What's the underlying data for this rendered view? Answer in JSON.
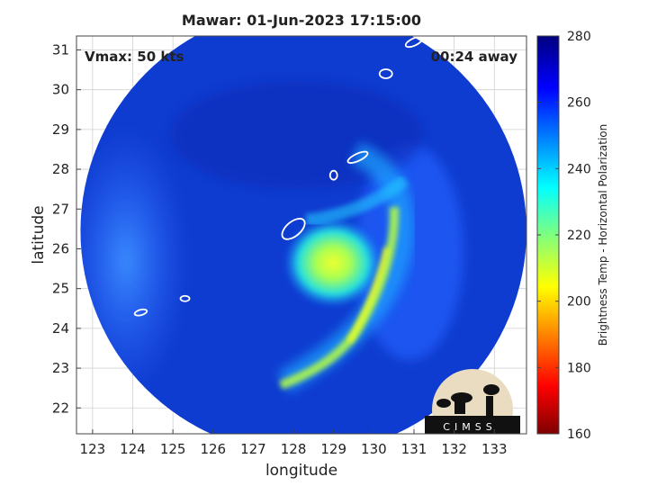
{
  "chart_data": {
    "type": "heatmap",
    "title": "Mawar: 01-Jun-2023 17:15:00",
    "xlabel": "longitude",
    "ylabel": "latitude",
    "xlim": [
      122.6,
      133.8
    ],
    "ylim": [
      21.35,
      31.35
    ],
    "xticks": [
      123,
      124,
      125,
      126,
      127,
      128,
      129,
      130,
      131,
      132,
      133
    ],
    "yticks": [
      22,
      23,
      24,
      25,
      26,
      27,
      28,
      29,
      30,
      31
    ],
    "grid": true,
    "annotation_left": "Vmax: 50 kts",
    "annotation_right": "00:24 away",
    "colorbar": {
      "label": "Brightness Temp - Horizontal Polarization",
      "range": [
        160,
        280
      ],
      "ticks": [
        160,
        180,
        200,
        220,
        240,
        260,
        280
      ],
      "colormap": "jet"
    },
    "scan_disk": {
      "center": [
        128.25,
        26.45
      ],
      "radius_deg": 5.55
    },
    "features": [
      {
        "name": "inner-core warm region",
        "center": [
          128.7,
          25.7
        ],
        "value": 205
      },
      {
        "name": "rainband",
        "from": [
          131.0,
          28.0
        ],
        "to": [
          127.7,
          22.7
        ],
        "value": 200
      },
      {
        "name": "west-edge cold",
        "center": [
          123.5,
          26.5
        ],
        "value": 255
      }
    ],
    "islands": [
      {
        "name": "Ryukyu-north",
        "lon": 131.0,
        "lat": 31.2
      },
      {
        "name": "Ryukyu-1",
        "lon": 130.3,
        "lat": 30.4
      },
      {
        "name": "Amami",
        "lon": 129.6,
        "lat": 28.3
      },
      {
        "name": "Amami-south",
        "lon": 129.0,
        "lat": 27.85
      },
      {
        "name": "Okinawa",
        "lon": 128.0,
        "lat": 26.5
      },
      {
        "name": "Miyako",
        "lon": 125.3,
        "lat": 24.75
      },
      {
        "name": "Ishigaki",
        "lon": 124.2,
        "lat": 24.4
      }
    ]
  },
  "logo": {
    "text": "CIMSS",
    "description": "CIMSS logo"
  },
  "colors": {
    "background_outside": "#ffffff",
    "ocean_base": "#0f3cd0",
    "island_outline": "#ffffff",
    "logo_bg": "#e9dcc0",
    "logo_dark": "#111111"
  }
}
